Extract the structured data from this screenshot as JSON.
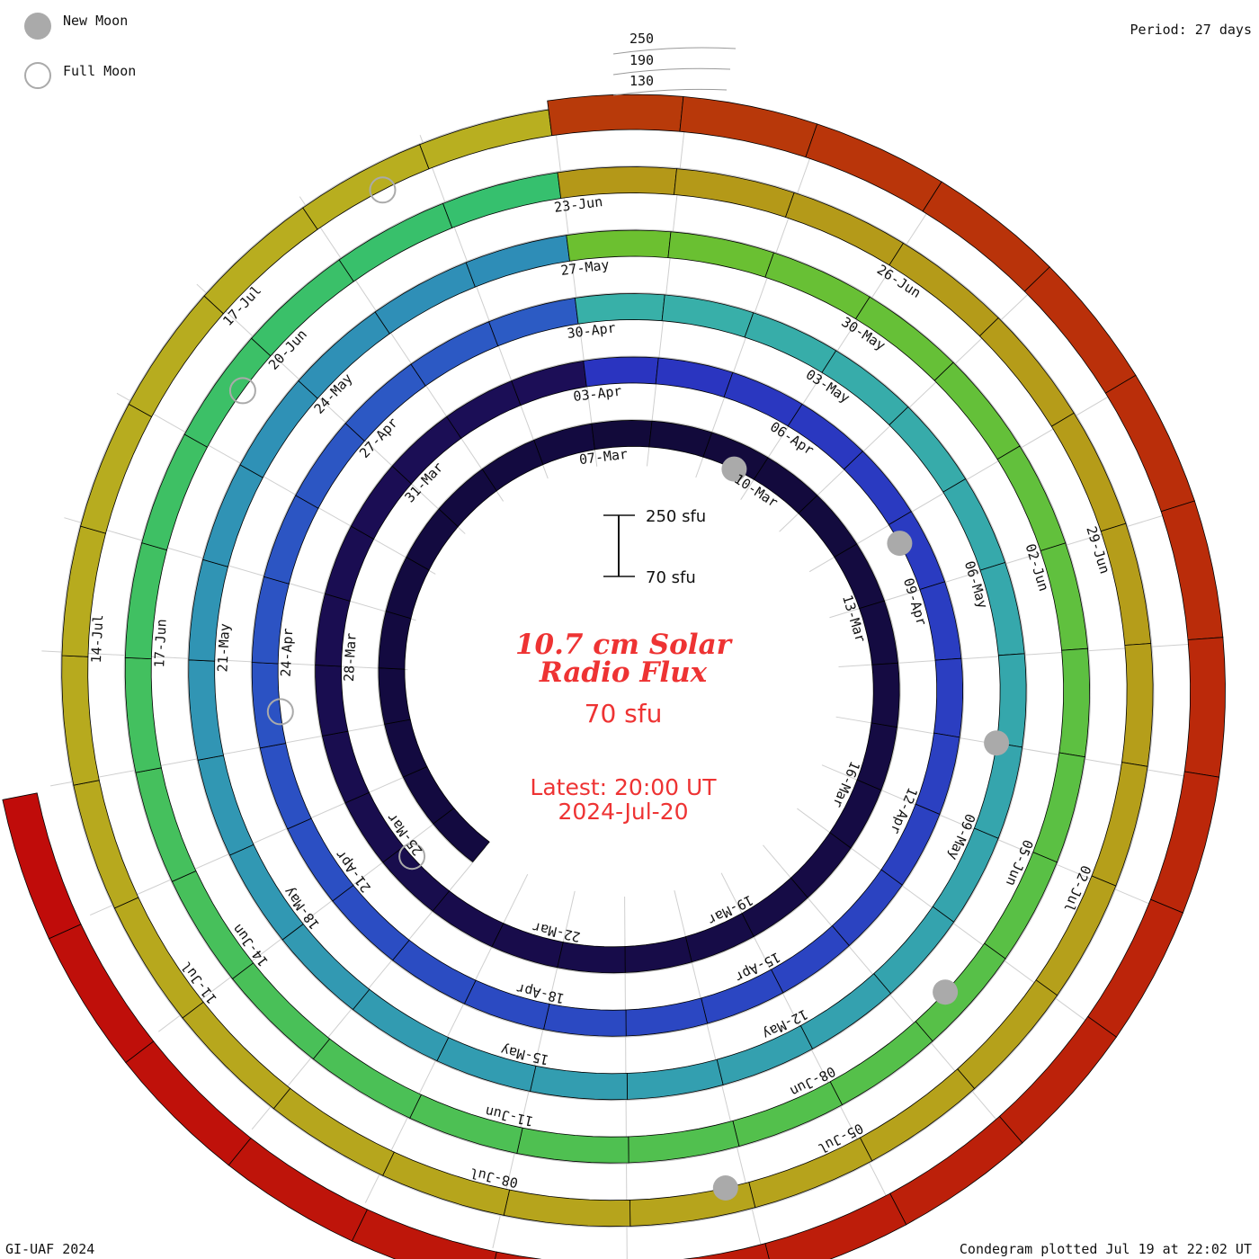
{
  "legend": {
    "new_moon_label": "New Moon",
    "full_moon_label": "Full Moon",
    "new_moon_color": "#aaaaaa",
    "full_moon_color": "#aaaaaa"
  },
  "period_label": "Period: 27 days",
  "footer": {
    "left": "GI-UAF 2024",
    "right": "Condegram plotted Jul 19 at 22:02 UT"
  },
  "center": {
    "title_line1": "10.7 cm Solar",
    "title_line2": "Radio Flux",
    "current_value": "70 sfu",
    "latest_line1": "Latest: 20:00 UT",
    "latest_line2": "2024-Jul-20",
    "scale_top": "250 sfu",
    "scale_bottom": "70 sfu"
  },
  "flux_ticks": [
    "250",
    "190",
    "130"
  ],
  "chart_data": {
    "type": "condegram",
    "title": "10.7 cm Solar Radio Flux",
    "unit": "sfu",
    "period_days": 27,
    "scale_range": [
      70,
      250
    ],
    "reference_ticks": [
      250,
      190,
      130
    ],
    "rings": [
      {
        "colors": [
          "#120a3a",
          "#1c0e58"
        ],
        "labels": [
          {
            "d": 0,
            "t": "07-Mar"
          },
          {
            "d": 3,
            "t": "10-Mar"
          },
          {
            "d": 6,
            "t": "13-Mar"
          },
          {
            "d": 9,
            "t": "16-Mar"
          },
          {
            "d": 12,
            "t": "19-Mar"
          },
          {
            "d": 15,
            "t": "22-Mar"
          },
          {
            "d": 18,
            "t": "25-Mar"
          },
          {
            "d": 21,
            "t": "28-Mar"
          },
          {
            "d": 24,
            "t": "31-Mar"
          }
        ]
      },
      {
        "colors": [
          "#2a34c0",
          "#2c5cc4"
        ],
        "labels": [
          {
            "d": 0,
            "t": "03-Apr"
          },
          {
            "d": 3,
            "t": "06-Apr"
          },
          {
            "d": 6,
            "t": "09-Apr"
          },
          {
            "d": 9,
            "t": "12-Apr"
          },
          {
            "d": 12,
            "t": "15-Apr"
          },
          {
            "d": 15,
            "t": "18-Apr"
          },
          {
            "d": 18,
            "t": "21-Apr"
          },
          {
            "d": 21,
            "t": "24-Apr"
          },
          {
            "d": 24,
            "t": "27-Apr"
          }
        ]
      },
      {
        "colors": [
          "#38b0a8",
          "#2e8cb8"
        ],
        "labels": [
          {
            "d": 0,
            "t": "30-Apr"
          },
          {
            "d": 3,
            "t": "03-May"
          },
          {
            "d": 6,
            "t": "06-May"
          },
          {
            "d": 9,
            "t": "09-May"
          },
          {
            "d": 12,
            "t": "12-May"
          },
          {
            "d": 15,
            "t": "15-May"
          },
          {
            "d": 18,
            "t": "18-May"
          },
          {
            "d": 21,
            "t": "21-May"
          },
          {
            "d": 24,
            "t": "24-May"
          }
        ]
      },
      {
        "colors": [
          "#6cc030",
          "#34c070"
        ],
        "labels": [
          {
            "d": 0,
            "t": "27-May"
          },
          {
            "d": 3,
            "t": "30-May"
          },
          {
            "d": 6,
            "t": "02-Jun"
          },
          {
            "d": 9,
            "t": "05-Jun"
          },
          {
            "d": 12,
            "t": "08-Jun"
          },
          {
            "d": 15,
            "t": "11-Jun"
          },
          {
            "d": 18,
            "t": "14-Jun"
          },
          {
            "d": 21,
            "t": "17-Jun"
          },
          {
            "d": 24,
            "t": "20-Jun"
          }
        ]
      },
      {
        "colors": [
          "#b49818",
          "#b8b020"
        ],
        "labels": [
          {
            "d": 0,
            "t": "23-Jun"
          },
          {
            "d": 3,
            "t": "26-Jun"
          },
          {
            "d": 6,
            "t": "29-Jun"
          },
          {
            "d": 9,
            "t": "02-Jul"
          },
          {
            "d": 12,
            "t": "05-Jul"
          },
          {
            "d": 15,
            "t": "08-Jul"
          },
          {
            "d": 18,
            "t": "11-Jul"
          },
          {
            "d": 21,
            "t": "14-Jul"
          },
          {
            "d": 24,
            "t": "17-Jul"
          }
        ]
      }
    ],
    "moons": [
      {
        "type": "new",
        "ring": 0,
        "d": 2.6
      },
      {
        "type": "full",
        "ring": 0,
        "d": 17.8
      },
      {
        "type": "new",
        "ring": 1,
        "d": 5.3
      },
      {
        "type": "full",
        "ring": 1,
        "d": 20.4
      },
      {
        "type": "new",
        "ring": 2,
        "d": 8.0
      },
      {
        "type": "new",
        "ring": 3,
        "d": 10.6
      },
      {
        "type": "full",
        "ring": 3,
        "d": 23.6
      },
      {
        "type": "new",
        "ring": 4,
        "d": 13.2
      },
      {
        "type": "full",
        "ring": 4,
        "d": 25.6
      }
    ]
  }
}
